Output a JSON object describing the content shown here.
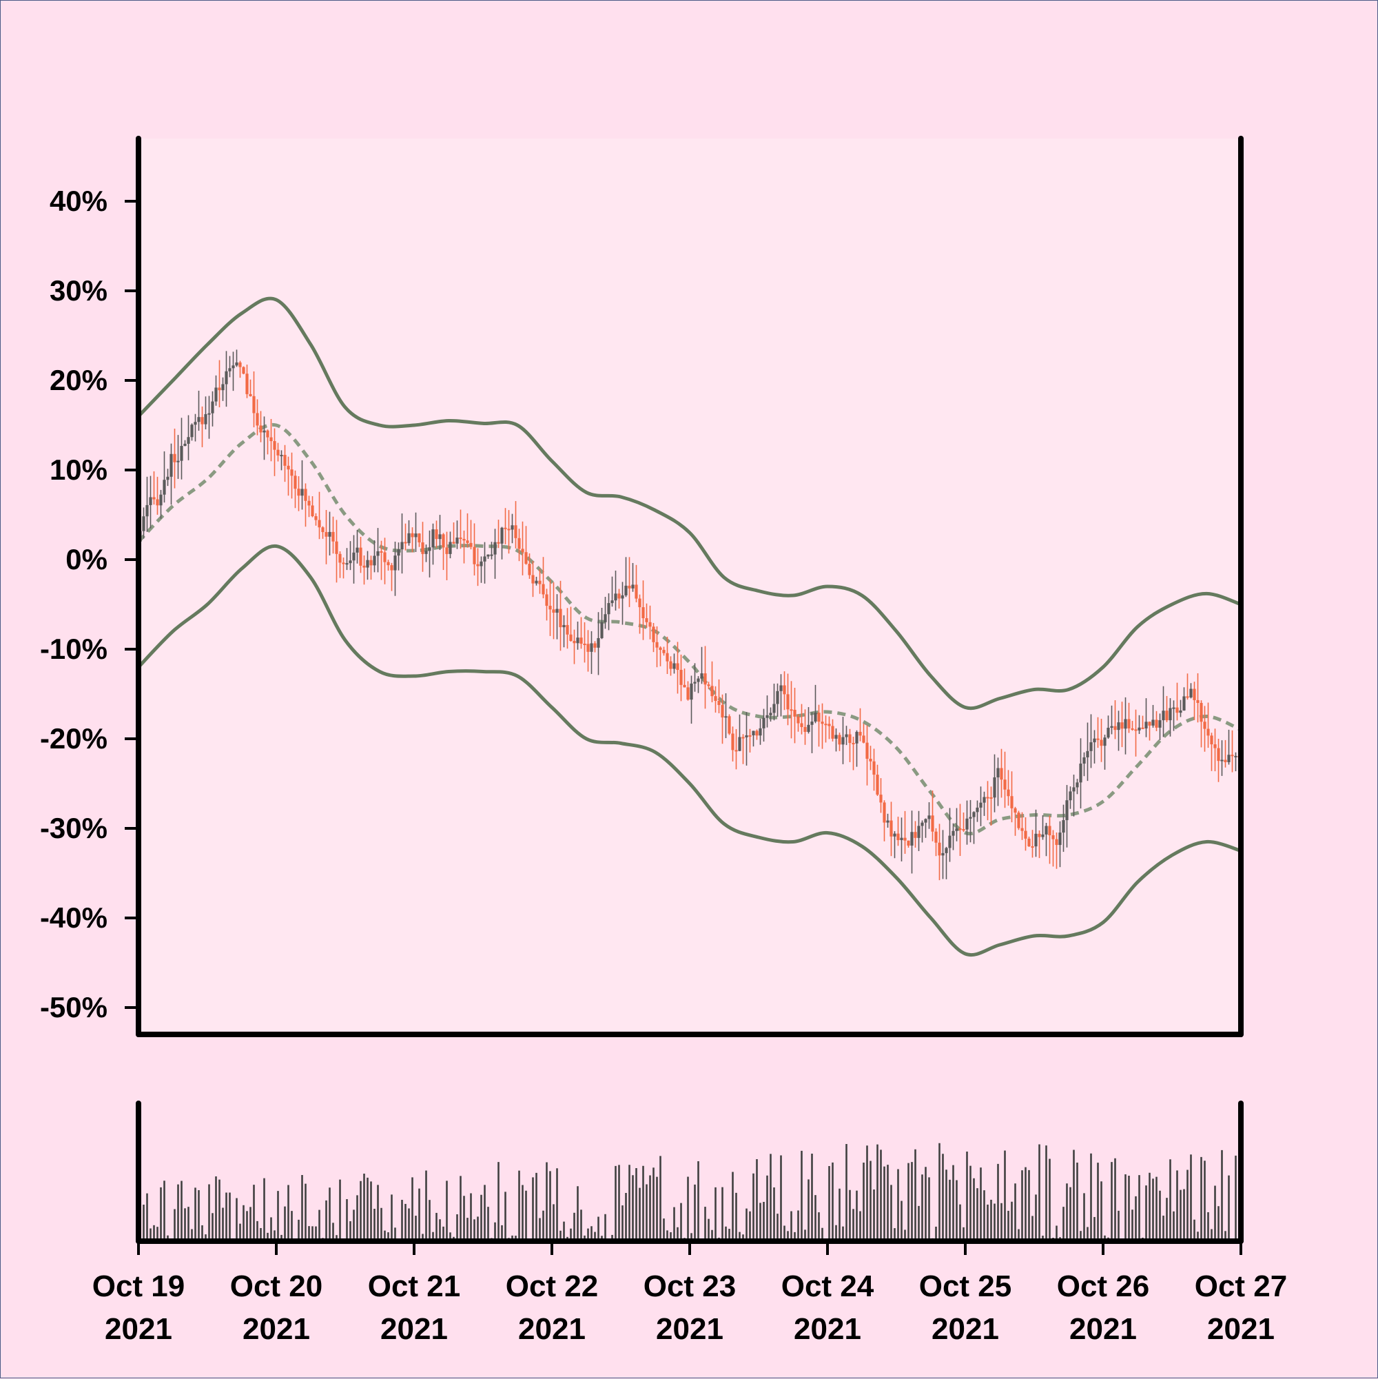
{
  "colors": {
    "background": "#ffe0ee",
    "plot_background": "#ffe7f1",
    "up": "#5a5a5a",
    "down": "#f26a45",
    "band": "#657a5e",
    "middle": "#8a9a82",
    "volume": "#404040",
    "axis": "#000000"
  },
  "chart_data": [
    {
      "type": "candlestick",
      "title": "",
      "xlabel": "",
      "ylabel": "",
      "y_format": "percent",
      "ylim": [
        -53,
        47
      ],
      "yticks": [
        40,
        30,
        20,
        10,
        0,
        -10,
        -20,
        -30,
        -40,
        -50
      ],
      "ytick_labels": [
        "40%",
        "30%",
        "20%",
        "10%",
        "0%",
        "-10%",
        "-20%",
        "-30%",
        "-40%",
        "-50%"
      ],
      "x_start": "2021-10-19",
      "x_end": "2021-10-27",
      "grid": false,
      "legend": "none",
      "overlay": "bollinger bands (upper, middle dashed, lower)",
      "close_path": [
        [
          "2021-10-19 00:00",
          2
        ],
        [
          "2021-10-19 02:00",
          6
        ],
        [
          "2021-10-19 04:00",
          7
        ],
        [
          "2021-10-19 06:00",
          11
        ],
        [
          "2021-10-19 08:00",
          12
        ],
        [
          "2021-10-19 10:00",
          15
        ],
        [
          "2021-10-19 12:00",
          16
        ],
        [
          "2021-10-19 14:00",
          19
        ],
        [
          "2021-10-19 16:00",
          21
        ],
        [
          "2021-10-19 18:00",
          22
        ],
        [
          "2021-10-19 20:00",
          17
        ],
        [
          "2021-10-19 22:00",
          14
        ],
        [
          "2021-10-20 00:00",
          12
        ],
        [
          "2021-10-20 02:00",
          11
        ],
        [
          "2021-10-20 04:00",
          8
        ],
        [
          "2021-10-20 06:00",
          6
        ],
        [
          "2021-10-20 08:00",
          4
        ],
        [
          "2021-10-20 10:00",
          2
        ],
        [
          "2021-10-20 12:00",
          -1
        ],
        [
          "2021-10-20 14:00",
          1
        ],
        [
          "2021-10-20 16:00",
          -1
        ],
        [
          "2021-10-20 18:00",
          1
        ],
        [
          "2021-10-20 20:00",
          -1
        ],
        [
          "2021-10-20 22:00",
          2
        ],
        [
          "2021-10-21 00:00",
          3
        ],
        [
          "2021-10-21 02:00",
          1
        ],
        [
          "2021-10-21 04:00",
          3
        ],
        [
          "2021-10-21 06:00",
          1
        ],
        [
          "2021-10-21 08:00",
          3
        ],
        [
          "2021-10-21 10:00",
          1
        ],
        [
          "2021-10-21 12:00",
          -1
        ],
        [
          "2021-10-21 14:00",
          1
        ],
        [
          "2021-10-21 16:00",
          4
        ],
        [
          "2021-10-21 18:00",
          3
        ],
        [
          "2021-10-21 20:00",
          -1
        ],
        [
          "2021-10-21 22:00",
          -3
        ],
        [
          "2021-10-22 00:00",
          -5
        ],
        [
          "2021-10-22 02:00",
          -7
        ],
        [
          "2021-10-22 04:00",
          -9
        ],
        [
          "2021-10-22 06:00",
          -10
        ],
        [
          "2021-10-22 08:00",
          -9
        ],
        [
          "2021-10-22 10:00",
          -5
        ],
        [
          "2021-10-22 12:00",
          -4
        ],
        [
          "2021-10-22 14:00",
          -3
        ],
        [
          "2021-10-22 16:00",
          -6
        ],
        [
          "2021-10-22 18:00",
          -9
        ],
        [
          "2021-10-22 20:00",
          -11
        ],
        [
          "2021-10-22 22:00",
          -12
        ],
        [
          "2021-10-23 00:00",
          -15
        ],
        [
          "2021-10-23 02:00",
          -13
        ],
        [
          "2021-10-23 04:00",
          -15
        ],
        [
          "2021-10-23 06:00",
          -17
        ],
        [
          "2021-10-23 08:00",
          -21
        ],
        [
          "2021-10-23 10:00",
          -20
        ],
        [
          "2021-10-23 12:00",
          -19
        ],
        [
          "2021-10-23 14:00",
          -17
        ],
        [
          "2021-10-23 16:00",
          -14
        ],
        [
          "2021-10-23 18:00",
          -17
        ],
        [
          "2021-10-23 20:00",
          -19
        ],
        [
          "2021-10-23 22:00",
          -17
        ],
        [
          "2021-10-24 00:00",
          -19
        ],
        [
          "2021-10-24 02:00",
          -20
        ],
        [
          "2021-10-24 04:00",
          -20
        ],
        [
          "2021-10-24 06:00",
          -20
        ],
        [
          "2021-10-24 08:00",
          -23
        ],
        [
          "2021-10-24 10:00",
          -29
        ],
        [
          "2021-10-24 12:00",
          -31
        ],
        [
          "2021-10-24 14:00",
          -32
        ],
        [
          "2021-10-24 16:00",
          -30
        ],
        [
          "2021-10-24 18:00",
          -29
        ],
        [
          "2021-10-24 20:00",
          -33
        ],
        [
          "2021-10-24 22:00",
          -31
        ],
        [
          "2021-10-25 00:00",
          -30
        ],
        [
          "2021-10-25 02:00",
          -28
        ],
        [
          "2021-10-25 04:00",
          -27
        ],
        [
          "2021-10-25 06:00",
          -24
        ],
        [
          "2021-10-25 08:00",
          -27
        ],
        [
          "2021-10-25 10:00",
          -30
        ],
        [
          "2021-10-25 12:00",
          -32
        ],
        [
          "2021-10-25 14:00",
          -30
        ],
        [
          "2021-10-25 16:00",
          -32
        ],
        [
          "2021-10-25 18:00",
          -27
        ],
        [
          "2021-10-25 20:00",
          -24
        ],
        [
          "2021-10-25 22:00",
          -21
        ],
        [
          "2021-10-26 00:00",
          -20
        ],
        [
          "2021-10-26 02:00",
          -19
        ],
        [
          "2021-10-26 04:00",
          -18
        ],
        [
          "2021-10-26 06:00",
          -19
        ],
        [
          "2021-10-26 08:00",
          -18
        ],
        [
          "2021-10-26 10:00",
          -18
        ],
        [
          "2021-10-26 12:00",
          -17
        ],
        [
          "2021-10-26 14:00",
          -16
        ],
        [
          "2021-10-26 16:00",
          -15
        ],
        [
          "2021-10-26 18:00",
          -19
        ],
        [
          "2021-10-26 20:00",
          -22
        ],
        [
          "2021-10-26 22:00",
          -22
        ],
        [
          "2021-10-27 00:00",
          -22
        ]
      ],
      "bands": {
        "upper": [
          [
            "2021-10-19 00:00",
            16
          ],
          [
            "2021-10-19 06:00",
            20
          ],
          [
            "2021-10-19 12:00",
            24
          ],
          [
            "2021-10-19 18:00",
            27.5
          ],
          [
            "2021-10-20 00:00",
            29
          ],
          [
            "2021-10-20 06:00",
            24
          ],
          [
            "2021-10-20 12:00",
            17
          ],
          [
            "2021-10-20 18:00",
            15
          ],
          [
            "2021-10-21 00:00",
            15
          ],
          [
            "2021-10-21 06:00",
            15.5
          ],
          [
            "2021-10-21 12:00",
            15.2
          ],
          [
            "2021-10-21 18:00",
            15
          ],
          [
            "2021-10-22 00:00",
            11
          ],
          [
            "2021-10-22 06:00",
            7.5
          ],
          [
            "2021-10-22 12:00",
            7
          ],
          [
            "2021-10-22 18:00",
            5.5
          ],
          [
            "2021-10-23 00:00",
            3
          ],
          [
            "2021-10-23 06:00",
            -2
          ],
          [
            "2021-10-23 12:00",
            -3.5
          ],
          [
            "2021-10-23 18:00",
            -4
          ],
          [
            "2021-10-24 00:00",
            -3
          ],
          [
            "2021-10-24 06:00",
            -4
          ],
          [
            "2021-10-24 12:00",
            -8
          ],
          [
            "2021-10-24 18:00",
            -13
          ],
          [
            "2021-10-25 00:00",
            -16.5
          ],
          [
            "2021-10-25 06:00",
            -15.5
          ],
          [
            "2021-10-25 12:00",
            -14.5
          ],
          [
            "2021-10-25 18:00",
            -14.5
          ],
          [
            "2021-10-26 00:00",
            -12
          ],
          [
            "2021-10-26 06:00",
            -7.5
          ],
          [
            "2021-10-26 12:00",
            -5
          ],
          [
            "2021-10-26 18:00",
            -3.8
          ],
          [
            "2021-10-27 00:00",
            -5
          ]
        ],
        "middle": [
          [
            "2021-10-19 00:00",
            2
          ],
          [
            "2021-10-19 06:00",
            6
          ],
          [
            "2021-10-19 12:00",
            9
          ],
          [
            "2021-10-19 18:00",
            13
          ],
          [
            "2021-10-20 00:00",
            15
          ],
          [
            "2021-10-20 06:00",
            11
          ],
          [
            "2021-10-20 12:00",
            5
          ],
          [
            "2021-10-20 18:00",
            1.5
          ],
          [
            "2021-10-21 00:00",
            1
          ],
          [
            "2021-10-21 06:00",
            1.5
          ],
          [
            "2021-10-21 12:00",
            1.5
          ],
          [
            "2021-10-21 18:00",
            1
          ],
          [
            "2021-10-22 00:00",
            -2.5
          ],
          [
            "2021-10-22 06:00",
            -6.5
          ],
          [
            "2021-10-22 12:00",
            -7
          ],
          [
            "2021-10-22 18:00",
            -8
          ],
          [
            "2021-10-23 00:00",
            -11.5
          ],
          [
            "2021-10-23 06:00",
            -16
          ],
          [
            "2021-10-23 12:00",
            -17.5
          ],
          [
            "2021-10-23 18:00",
            -17.5
          ],
          [
            "2021-10-24 00:00",
            -17
          ],
          [
            "2021-10-24 06:00",
            -18
          ],
          [
            "2021-10-24 12:00",
            -21
          ],
          [
            "2021-10-24 18:00",
            -26
          ],
          [
            "2021-10-25 00:00",
            -30.5
          ],
          [
            "2021-10-25 06:00",
            -29
          ],
          [
            "2021-10-25 12:00",
            -28.5
          ],
          [
            "2021-10-25 18:00",
            -28.5
          ],
          [
            "2021-10-26 00:00",
            -27
          ],
          [
            "2021-10-26 06:00",
            -23
          ],
          [
            "2021-10-26 12:00",
            -19
          ],
          [
            "2021-10-26 18:00",
            -17.5
          ],
          [
            "2021-10-27 00:00",
            -19
          ]
        ],
        "lower": [
          [
            "2021-10-19 00:00",
            -12
          ],
          [
            "2021-10-19 06:00",
            -8
          ],
          [
            "2021-10-19 12:00",
            -5
          ],
          [
            "2021-10-19 18:00",
            -1
          ],
          [
            "2021-10-20 00:00",
            1.5
          ],
          [
            "2021-10-20 06:00",
            -2
          ],
          [
            "2021-10-20 12:00",
            -9
          ],
          [
            "2021-10-20 18:00",
            -12.5
          ],
          [
            "2021-10-21 00:00",
            -13
          ],
          [
            "2021-10-21 06:00",
            -12.5
          ],
          [
            "2021-10-21 12:00",
            -12.5
          ],
          [
            "2021-10-21 18:00",
            -13
          ],
          [
            "2021-10-22 00:00",
            -16.5
          ],
          [
            "2021-10-22 06:00",
            -20
          ],
          [
            "2021-10-22 12:00",
            -20.5
          ],
          [
            "2021-10-22 18:00",
            -21.5
          ],
          [
            "2021-10-23 00:00",
            -25
          ],
          [
            "2021-10-23 06:00",
            -29.5
          ],
          [
            "2021-10-23 12:00",
            -31
          ],
          [
            "2021-10-23 18:00",
            -31.5
          ],
          [
            "2021-10-24 00:00",
            -30.5
          ],
          [
            "2021-10-24 06:00",
            -32
          ],
          [
            "2021-10-24 12:00",
            -35.5
          ],
          [
            "2021-10-24 18:00",
            -40
          ],
          [
            "2021-10-25 00:00",
            -44
          ],
          [
            "2021-10-25 06:00",
            -43
          ],
          [
            "2021-10-25 12:00",
            -42
          ],
          [
            "2021-10-25 18:00",
            -42
          ],
          [
            "2021-10-26 00:00",
            -40.5
          ],
          [
            "2021-10-26 06:00",
            -36
          ],
          [
            "2021-10-26 12:00",
            -33
          ],
          [
            "2021-10-26 18:00",
            -31.5
          ],
          [
            "2021-10-27 00:00",
            -32.5
          ]
        ]
      }
    },
    {
      "type": "bar",
      "role": "volume",
      "x_start": "2021-10-19",
      "x_end": "2021-10-27",
      "x_tick_labels": [
        {
          "date": "2021-10-19",
          "line1": "Oct 19",
          "line2": "2021"
        },
        {
          "date": "2021-10-20",
          "line1": "Oct 20",
          "line2": "2021"
        },
        {
          "date": "2021-10-21",
          "line1": "Oct 21",
          "line2": "2021"
        },
        {
          "date": "2021-10-22",
          "line1": "Oct 22",
          "line2": "2021"
        },
        {
          "date": "2021-10-23",
          "line1": "Oct 23",
          "line2": "2021"
        },
        {
          "date": "2021-10-24",
          "line1": "Oct 24",
          "line2": "2021"
        },
        {
          "date": "2021-10-25",
          "line1": "Oct 25",
          "line2": "2021"
        },
        {
          "date": "2021-10-26",
          "line1": "Oct 26",
          "line2": "2021"
        },
        {
          "date": "2021-10-27",
          "line1": "Oct 27",
          "line2": "2021"
        }
      ],
      "volume_trend": [
        [
          "2021-10-19",
          0.4
        ],
        [
          "2021-10-20",
          0.42
        ],
        [
          "2021-10-21",
          0.47
        ],
        [
          "2021-10-22",
          0.52
        ],
        [
          "2021-10-23",
          0.58
        ],
        [
          "2021-10-24",
          0.62
        ],
        [
          "2021-10-25",
          0.63
        ],
        [
          "2021-10-26",
          0.62
        ],
        [
          "2021-10-27",
          0.58
        ]
      ]
    }
  ]
}
